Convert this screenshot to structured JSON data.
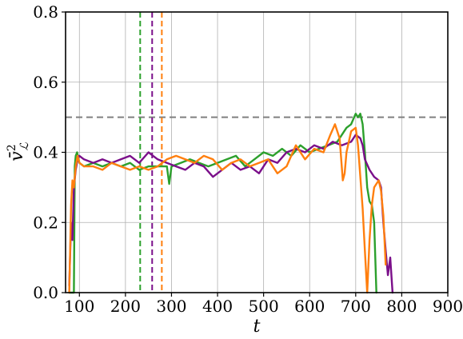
{
  "chart_data": {
    "type": "line",
    "xlabel": "t",
    "ylabel": {
      "base": "v̄",
      "sup": "2",
      "sub": "ℒ"
    },
    "xlim": [
      70,
      900
    ],
    "ylim": [
      0,
      0.8
    ],
    "xticks": [
      100,
      200,
      300,
      400,
      500,
      600,
      700,
      800,
      900
    ],
    "yticks": [
      0.0,
      0.2,
      0.4,
      0.6,
      0.8
    ],
    "xtick_labels": [
      "100",
      "200",
      "300",
      "400",
      "500",
      "600",
      "700",
      "800",
      "900"
    ],
    "ytick_labels": [
      "0.0",
      "0.2",
      "0.4",
      "0.6",
      "0.8"
    ],
    "grid": true,
    "hline": {
      "y": 0.5,
      "color": "#808080",
      "style": "dashed"
    },
    "vlines": [
      {
        "x": 232,
        "color": "#2ca02c",
        "style": "dashed"
      },
      {
        "x": 258,
        "color": "#7b0f8a",
        "style": "dashed"
      },
      {
        "x": 279,
        "color": "#ff7f0e",
        "style": "dashed"
      }
    ],
    "series": [
      {
        "color": "#2ca02c",
        "x": [
          78,
          84,
          88,
          90,
          92,
          95,
          100,
          110,
          130,
          150,
          170,
          190,
          210,
          230,
          250,
          270,
          290,
          295,
          300,
          320,
          340,
          360,
          380,
          400,
          420,
          440,
          460,
          480,
          500,
          520,
          540,
          560,
          580,
          600,
          620,
          640,
          660,
          680,
          690,
          700,
          705,
          710,
          715,
          720,
          725,
          730,
          735,
          740,
          745
        ],
        "y": [
          0.0,
          0.0,
          0.0,
          0.36,
          0.39,
          0.4,
          0.37,
          0.36,
          0.37,
          0.36,
          0.37,
          0.36,
          0.37,
          0.35,
          0.36,
          0.36,
          0.36,
          0.31,
          0.36,
          0.37,
          0.38,
          0.37,
          0.36,
          0.37,
          0.38,
          0.39,
          0.36,
          0.38,
          0.4,
          0.39,
          0.41,
          0.39,
          0.42,
          0.4,
          0.41,
          0.42,
          0.43,
          0.47,
          0.48,
          0.51,
          0.5,
          0.51,
          0.48,
          0.4,
          0.3,
          0.26,
          0.25,
          0.2,
          0.0
        ]
      },
      {
        "color": "#7b0f8a",
        "x": [
          78,
          82,
          85,
          88,
          92,
          96,
          100,
          110,
          130,
          150,
          170,
          190,
          210,
          230,
          250,
          260,
          270,
          290,
          310,
          330,
          350,
          370,
          390,
          410,
          430,
          450,
          470,
          490,
          510,
          530,
          550,
          570,
          590,
          610,
          630,
          650,
          670,
          690,
          700,
          710,
          715,
          720,
          730,
          740,
          750,
          755,
          760,
          765,
          770,
          775,
          780
        ],
        "y": [
          0.02,
          0.2,
          0.15,
          0.3,
          0.35,
          0.38,
          0.39,
          0.38,
          0.37,
          0.38,
          0.37,
          0.38,
          0.39,
          0.37,
          0.4,
          0.39,
          0.38,
          0.37,
          0.36,
          0.35,
          0.37,
          0.36,
          0.33,
          0.35,
          0.37,
          0.35,
          0.36,
          0.34,
          0.38,
          0.37,
          0.4,
          0.41,
          0.4,
          0.42,
          0.41,
          0.43,
          0.42,
          0.43,
          0.45,
          0.44,
          0.42,
          0.38,
          0.35,
          0.33,
          0.32,
          0.3,
          0.2,
          0.12,
          0.05,
          0.1,
          0.0
        ]
      },
      {
        "color": "#ff7f0e",
        "x": [
          78,
          82,
          85,
          88,
          92,
          96,
          100,
          110,
          130,
          150,
          170,
          190,
          210,
          230,
          250,
          270,
          290,
          310,
          330,
          350,
          370,
          390,
          410,
          430,
          450,
          470,
          490,
          510,
          530,
          550,
          570,
          590,
          610,
          630,
          645,
          655,
          665,
          672,
          676,
          680,
          690,
          700,
          705,
          710,
          715,
          720,
          725,
          730,
          735,
          740,
          745,
          750,
          755,
          760,
          765
        ],
        "y": [
          0.0,
          0.25,
          0.32,
          0.3,
          0.36,
          0.39,
          0.37,
          0.36,
          0.36,
          0.35,
          0.37,
          0.36,
          0.35,
          0.36,
          0.35,
          0.36,
          0.38,
          0.39,
          0.38,
          0.37,
          0.39,
          0.38,
          0.35,
          0.37,
          0.38,
          0.36,
          0.37,
          0.38,
          0.34,
          0.36,
          0.42,
          0.38,
          0.41,
          0.4,
          0.45,
          0.48,
          0.44,
          0.32,
          0.34,
          0.4,
          0.46,
          0.47,
          0.42,
          0.33,
          0.24,
          0.12,
          0.0,
          0.15,
          0.25,
          0.3,
          0.31,
          0.32,
          0.29,
          0.22,
          0.08
        ]
      }
    ]
  }
}
